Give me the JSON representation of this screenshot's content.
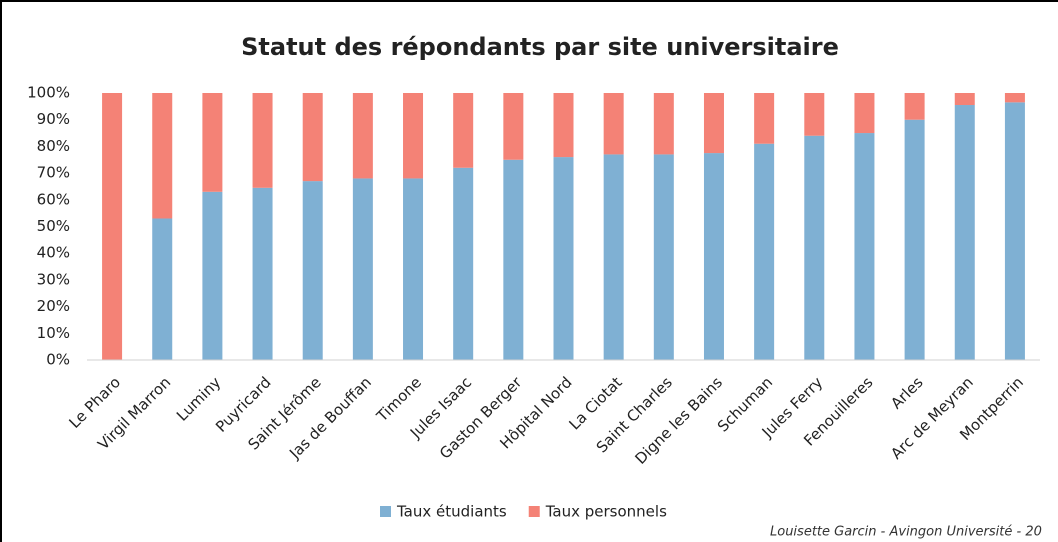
{
  "chart_data": {
    "type": "stacked_bar",
    "title": "Statut des répondants par site universitaire",
    "categories": [
      "Le Pharo",
      "Virgil Marron",
      "Luminy",
      "Puyricard",
      "Saint Jérôme",
      "Jas de Bouffan",
      "Timone",
      "Jules Isaac",
      "Gaston Berger",
      "Hôpital Nord",
      "La Ciotat",
      "Saint Charles",
      "Digne les Bains",
      "Schuman",
      "Jules Ferry",
      "Fenouilleres",
      "Arles",
      "Arc de Meyran",
      "Montperrin"
    ],
    "series": [
      {
        "name": "Taux étudiants",
        "color": "#7fb0d3",
        "values": [
          0,
          53,
          63,
          64.5,
          67,
          68,
          68,
          72,
          75,
          76,
          77,
          77,
          77.5,
          81,
          84,
          85,
          90,
          95.5,
          96.5
        ]
      },
      {
        "name": "Taux personnels",
        "color": "#f48276",
        "values": [
          100,
          47,
          37,
          35.5,
          33,
          32,
          32,
          28,
          25,
          24,
          23,
          23,
          22.5,
          19,
          16,
          15,
          10,
          4.5,
          3.5
        ]
      }
    ],
    "ylim": [
      0,
      100
    ],
    "yticks": [
      {
        "value": 0,
        "label": "0%"
      },
      {
        "value": 10,
        "label": "10%"
      },
      {
        "value": 20,
        "label": "20%"
      },
      {
        "value": 30,
        "label": "30%"
      },
      {
        "value": 40,
        "label": "40%"
      },
      {
        "value": 50,
        "label": "50%"
      },
      {
        "value": 60,
        "label": "60%"
      },
      {
        "value": 70,
        "label": "70%"
      },
      {
        "value": 80,
        "label": "80%"
      },
      {
        "value": 90,
        "label": "90%"
      },
      {
        "value": 100,
        "label": "100%"
      }
    ],
    "legend": "bottom",
    "footnote": "Louisette Garcin - Avingon Université - 20"
  }
}
